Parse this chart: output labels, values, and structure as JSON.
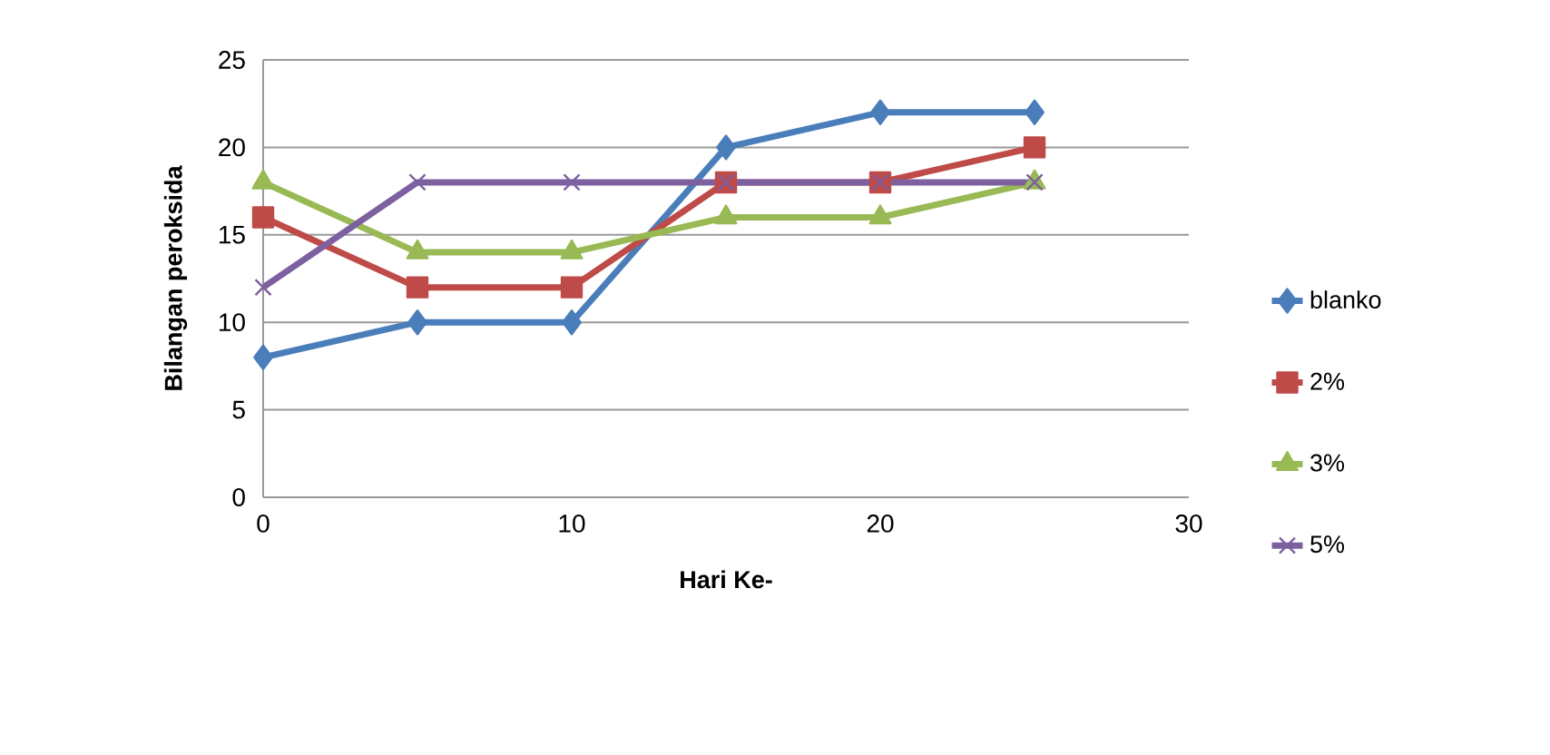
{
  "chart_data": {
    "type": "line",
    "xlabel": "Hari Ke-",
    "ylabel": "Bilangan peroksida",
    "x": [
      0,
      5,
      10,
      15,
      20,
      25
    ],
    "series": [
      {
        "name": "blanko",
        "color": "#4a7ebb",
        "marker": "diamond",
        "values": [
          8,
          10,
          10,
          20,
          22,
          22
        ]
      },
      {
        "name": "2%",
        "color": "#be4b48",
        "marker": "square",
        "values": [
          16,
          12,
          12,
          18,
          18,
          20
        ]
      },
      {
        "name": "3%",
        "color": "#98b954",
        "marker": "triangle",
        "values": [
          18,
          14,
          14,
          16,
          16,
          18
        ]
      },
      {
        "name": "5%",
        "color": "#7d60a0",
        "marker": "cross",
        "values": [
          12,
          18,
          18,
          18,
          18,
          18
        ]
      }
    ],
    "xlim": [
      0,
      30
    ],
    "xticks": [
      0,
      10,
      20,
      30
    ],
    "ylim": [
      0,
      25
    ],
    "yticks": [
      0,
      5,
      10,
      15,
      20,
      25
    ],
    "grid": "y",
    "legend": "right",
    "line_style": "solid"
  }
}
